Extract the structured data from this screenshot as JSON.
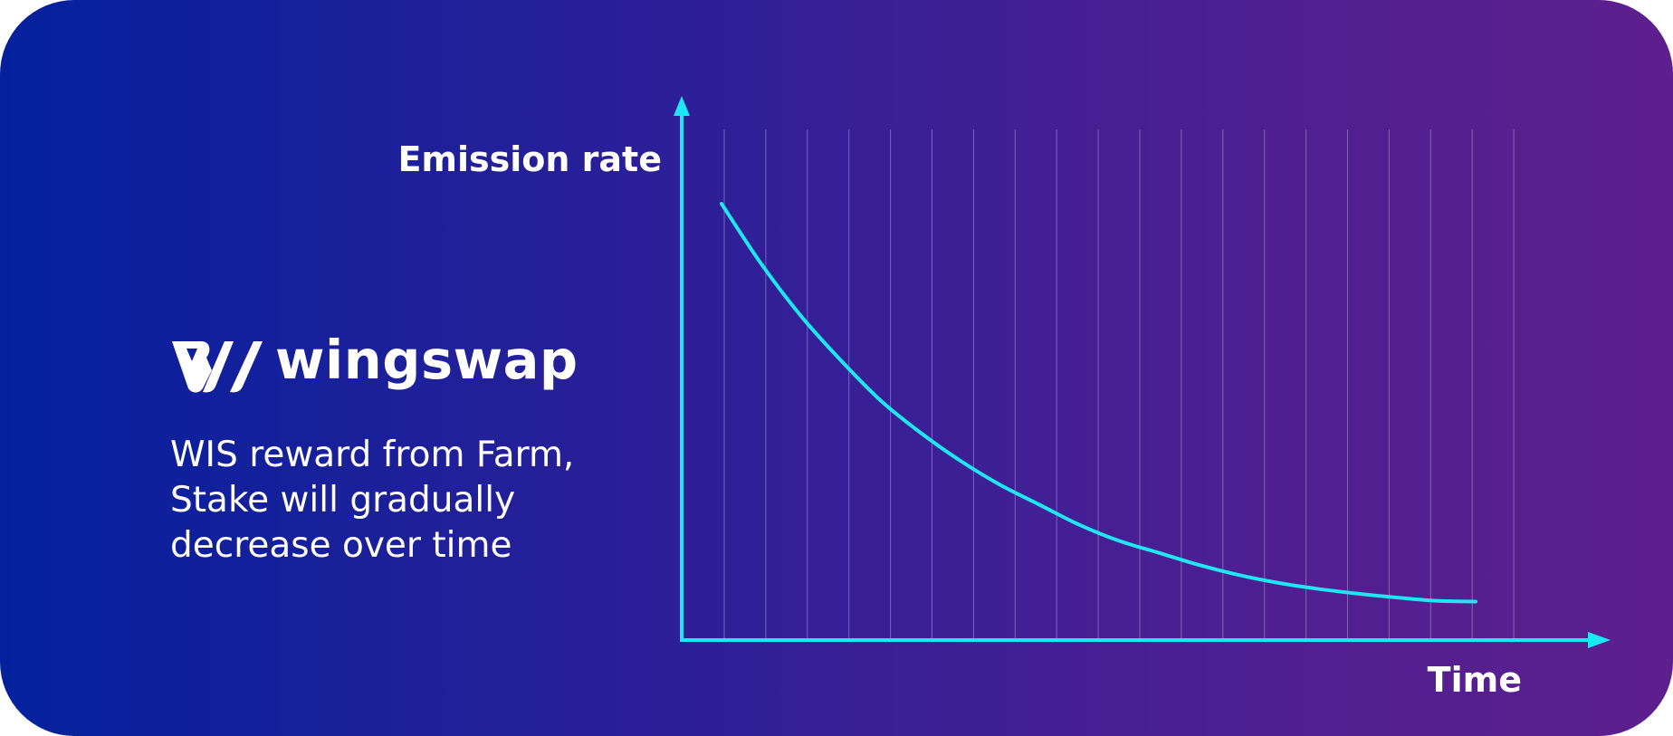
{
  "brand": {
    "name": "wingswap"
  },
  "tagline": {
    "line1": "WIS reward from Farm,",
    "line2": "Stake will gradually",
    "line3": "decrease over time"
  },
  "colors": {
    "gradient_start": "#04219d",
    "gradient_end": "#5e1f8e",
    "axis": "#1ee6f2",
    "curve": "#1ee6f2",
    "grid": "#a9a0d4",
    "text": "#ffffff"
  },
  "chart_data": {
    "type": "line",
    "title": "",
    "xlabel": "Time",
    "ylabel": "Emission rate",
    "grid": true,
    "gridlines_vertical": 20,
    "axis_ticks": "none",
    "series": [
      {
        "curve": "exponential decay",
        "x": [
          0,
          1,
          2,
          3,
          4,
          5,
          6,
          7,
          8,
          9,
          10,
          11,
          12,
          13,
          14,
          15,
          16,
          17,
          18,
          19
        ],
        "y": [
          1.0,
          0.85,
          0.72,
          0.61,
          0.51,
          0.43,
          0.36,
          0.3,
          0.25,
          0.2,
          0.16,
          0.13,
          0.1,
          0.075,
          0.055,
          0.04,
          0.028,
          0.018,
          0.01,
          0.008
        ]
      }
    ]
  }
}
